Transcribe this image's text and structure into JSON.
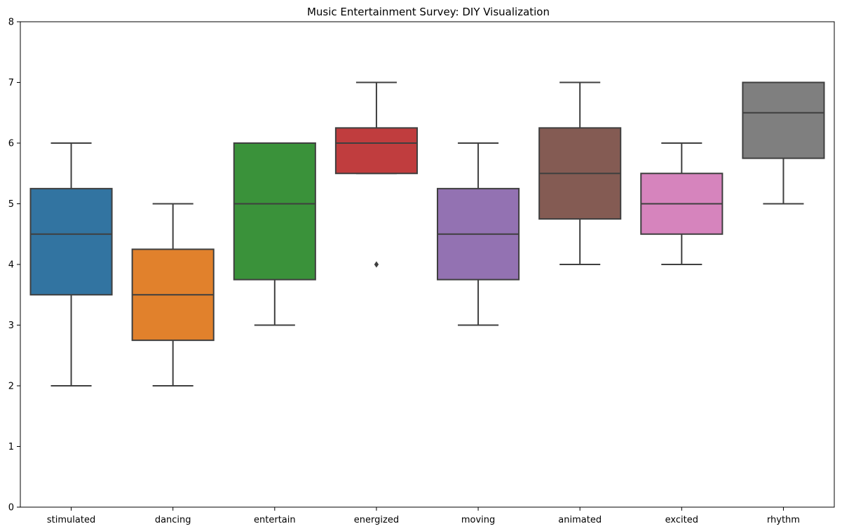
{
  "chart_data": {
    "type": "box",
    "title": "Music Entertainment Survey: DIY Visualization",
    "xlabel": "",
    "ylabel": "",
    "ylim": [
      0,
      8
    ],
    "yticks": [
      "0",
      "1",
      "2",
      "3",
      "4",
      "5",
      "6",
      "7",
      "8"
    ],
    "grid": false,
    "legend": "none",
    "categories": [
      "stimulated",
      "dancing",
      "entertain",
      "energized",
      "moving",
      "animated",
      "excited",
      "rhythm"
    ],
    "boxes": [
      {
        "category": "stimulated",
        "whisker_low": 2,
        "q1": 3.5,
        "median": 4.5,
        "q3": 5.25,
        "whisker_high": 6,
        "outliers": [],
        "color": "#3274a1"
      },
      {
        "category": "dancing",
        "whisker_low": 2,
        "q1": 2.75,
        "median": 3.5,
        "q3": 4.25,
        "whisker_high": 5,
        "outliers": [],
        "color": "#e1812c"
      },
      {
        "category": "entertain",
        "whisker_low": 3,
        "q1": 3.75,
        "median": 5,
        "q3": 6,
        "whisker_high": 6,
        "outliers": [],
        "color": "#3a923a"
      },
      {
        "category": "energized",
        "whisker_low": 5.5,
        "q1": 5.5,
        "median": 6,
        "q3": 6.25,
        "whisker_high": 7,
        "outliers": [
          4
        ],
        "color": "#c03d3e"
      },
      {
        "category": "moving",
        "whisker_low": 3,
        "q1": 3.75,
        "median": 4.5,
        "q3": 5.25,
        "whisker_high": 6,
        "outliers": [],
        "color": "#9372b2"
      },
      {
        "category": "animated",
        "whisker_low": 4,
        "q1": 4.75,
        "median": 5.5,
        "q3": 6.25,
        "whisker_high": 7,
        "outliers": [],
        "color": "#845b53"
      },
      {
        "category": "excited",
        "whisker_low": 4,
        "q1": 4.5,
        "median": 5,
        "q3": 5.5,
        "whisker_high": 6,
        "outliers": [],
        "color": "#d684bd"
      },
      {
        "category": "rhythm",
        "whisker_low": 5,
        "q1": 5.75,
        "median": 6.5,
        "q3": 7,
        "whisker_high": 7,
        "outliers": [],
        "color": "#7f7f7f"
      }
    ],
    "line_color": "#3f3f3f"
  }
}
